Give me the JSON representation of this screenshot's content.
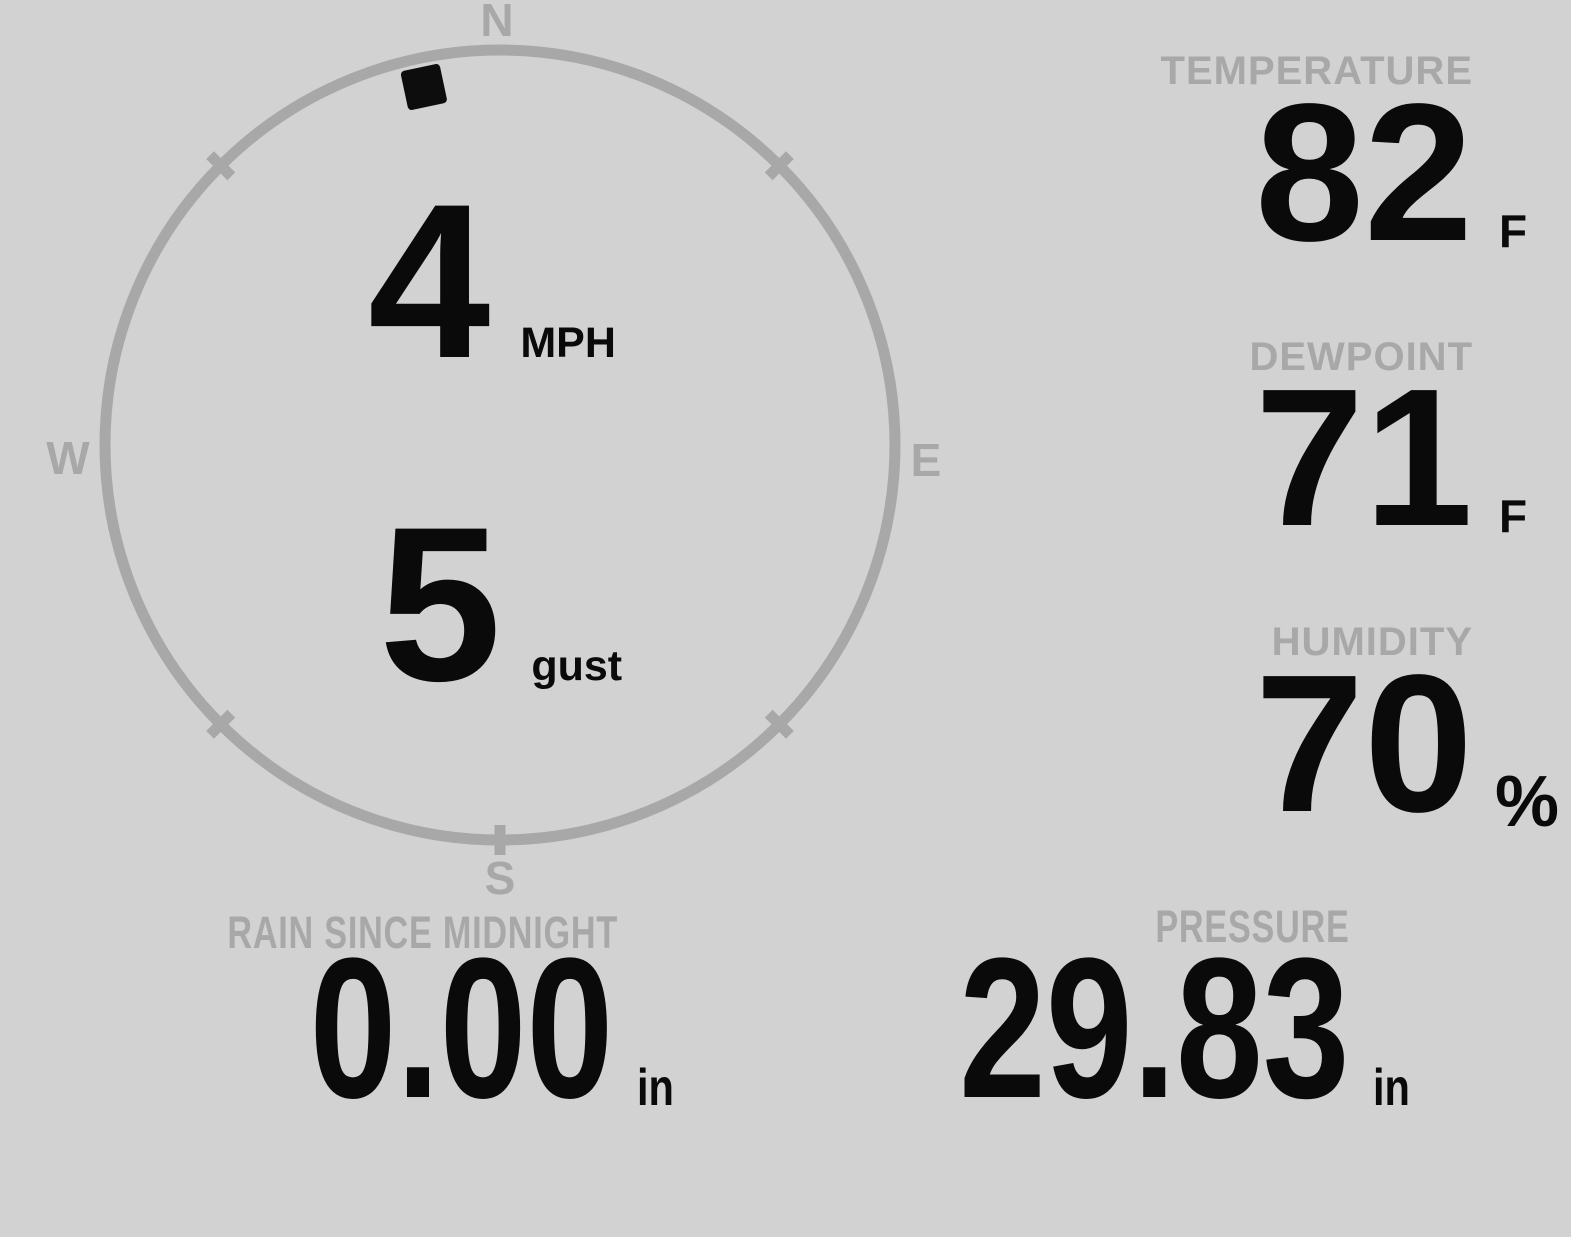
{
  "theme": {
    "background": "#d2d2d2",
    "muted_color": "#a8a8a8",
    "value_color": "#0a0a0a",
    "marker_color": "#0d0d0d"
  },
  "compass": {
    "cardinal_n": "N",
    "cardinal_e": "E",
    "cardinal_s": "S",
    "cardinal_w": "W",
    "wind_direction_deg": 348,
    "speed": {
      "value": "4",
      "unit": "MPH"
    },
    "gust": {
      "value": "5",
      "unit": "gust"
    }
  },
  "metrics": {
    "temperature": {
      "label": "TEMPERATURE",
      "value": "82",
      "unit": "F"
    },
    "dewpoint": {
      "label": "DEWPOINT",
      "value": "71",
      "unit": "F"
    },
    "humidity": {
      "label": "HUMIDITY",
      "value": "70",
      "unit": "%"
    },
    "rain": {
      "label": "RAIN SINCE MIDNIGHT",
      "value": "0.00",
      "unit": "in"
    },
    "pressure": {
      "label": "PRESSURE",
      "value": "29.83",
      "unit": "in"
    }
  }
}
